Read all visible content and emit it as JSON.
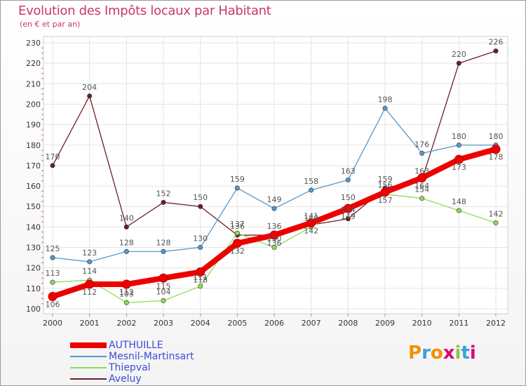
{
  "title": "Evolution des Impôts locaux par Habitant",
  "subtitle": "(en € et par an)",
  "logo": "Proxiti",
  "chart_data": {
    "type": "line",
    "title": "Evolution des Impôts locaux par Habitant",
    "subtitle": "(en € et par an)",
    "x": [
      "2000",
      "2001",
      "2002",
      "2003",
      "2004",
      "2005",
      "2006",
      "2007",
      "2008",
      "2009",
      "2010",
      "2011",
      "2012"
    ],
    "ylim": [
      100,
      230
    ],
    "yticks": [
      "100",
      "110",
      "120",
      "130",
      "140",
      "150",
      "160",
      "170",
      "180",
      "190",
      "200",
      "210",
      "220",
      "230"
    ],
    "grid": true,
    "legend_position": "bottom-left",
    "series": [
      {
        "name": "AUTHUILLE",
        "color": "#ee0000",
        "labelColor": "#555555",
        "values": [
          106,
          112,
          112,
          115,
          118,
          132,
          136,
          142,
          149,
          157,
          164,
          173,
          178
        ],
        "labels": [
          "106",
          "112",
          "112",
          "115",
          "118",
          "132",
          "136",
          "142",
          "149",
          "157",
          "164",
          "173",
          "178"
        ]
      },
      {
        "name": "Mesnil-Martinsart",
        "color": "#5599cc",
        "labelColor": "#555555",
        "values": [
          125,
          123,
          128,
          128,
          130,
          159,
          149,
          158,
          163,
          198,
          176,
          180,
          180
        ],
        "labels": [
          "125",
          "123",
          "128",
          "128",
          "130",
          "159",
          "149",
          "158",
          "163",
          "198",
          "176",
          "180",
          "180"
        ]
      },
      {
        "name": "Thiepval",
        "color": "#88dd55",
        "labelColor": "#555555",
        "values": [
          113,
          114,
          103,
          104,
          111,
          137,
          130,
          140,
          150,
          156,
          154,
          148,
          142
        ],
        "labels": [
          "113",
          "114",
          "103",
          "104",
          "111",
          "137",
          "130",
          "140",
          "150",
          "156",
          "154",
          "148",
          "142"
        ]
      },
      {
        "name": "Aveluy",
        "color": "#6b1e28",
        "labelColor": "#555555",
        "values": [
          170,
          204,
          140,
          152,
          150,
          136,
          136,
          141,
          144,
          159,
          163,
          220,
          226
        ],
        "labels": [
          "170",
          "204",
          "140",
          "152",
          "150",
          "136",
          "136",
          "141",
          "144",
          "159",
          "163",
          "220",
          "226"
        ]
      }
    ]
  }
}
